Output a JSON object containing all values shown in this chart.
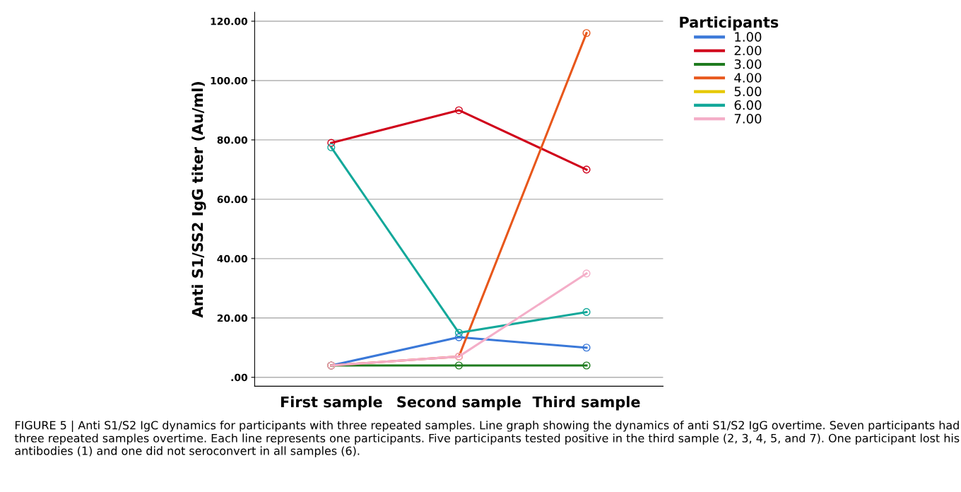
{
  "chart_data": {
    "type": "line",
    "ylabel": "Anti S1/SS2 IgG titer (Au/ml)",
    "legend_title": "Participants",
    "categories": [
      "First sample",
      "Second sample",
      "Third sample"
    ],
    "series": [
      {
        "name": "1.00",
        "color": "#3a78d8",
        "values": [
          4,
          13.5,
          10
        ]
      },
      {
        "name": "2.00",
        "color": "#d0021b",
        "values": [
          79,
          90,
          70
        ]
      },
      {
        "name": "3.00",
        "color": "#1e7b1e",
        "values": [
          4,
          4,
          4
        ]
      },
      {
        "name": "4.00",
        "color": "#e8571b",
        "values": [
          4,
          7,
          116
        ]
      },
      {
        "name": "5.00",
        "color": "#e6c800",
        "values": [
          null,
          null,
          null
        ]
      },
      {
        "name": "6.00",
        "color": "#13a89a",
        "values": [
          77.5,
          15,
          22
        ]
      },
      {
        "name": "7.00",
        "color": "#f4aec8",
        "values": [
          4,
          7,
          35
        ]
      }
    ],
    "ylim": [
      -3,
      123
    ],
    "yticks": [
      {
        "value": 0,
        "label": ".00"
      },
      {
        "value": 20,
        "label": "20.00"
      },
      {
        "value": 40,
        "label": "40.00"
      },
      {
        "value": 60,
        "label": "60.00"
      },
      {
        "value": 80,
        "label": "80.00"
      },
      {
        "value": 100,
        "label": "100.00"
      },
      {
        "value": 120,
        "label": "120.00"
      }
    ],
    "grid": "y",
    "legend": "top right",
    "marker": "circle",
    "line_style": "solid",
    "annotations": [
      "FIGURE 5 | Anti S1/S2 IgC dynamics for participants with three repeated samples. Line graph showing the dynamics of anti S1/S2 IgG overtime. Seven participants had three repeated samples overtime. Each line represents one participants. Five participants tested positive in the third sample (2, 3, 4, 5, and 7). One participant lost his antibodies (1) and one did not seroconvert in all samples (6)."
    ]
  }
}
